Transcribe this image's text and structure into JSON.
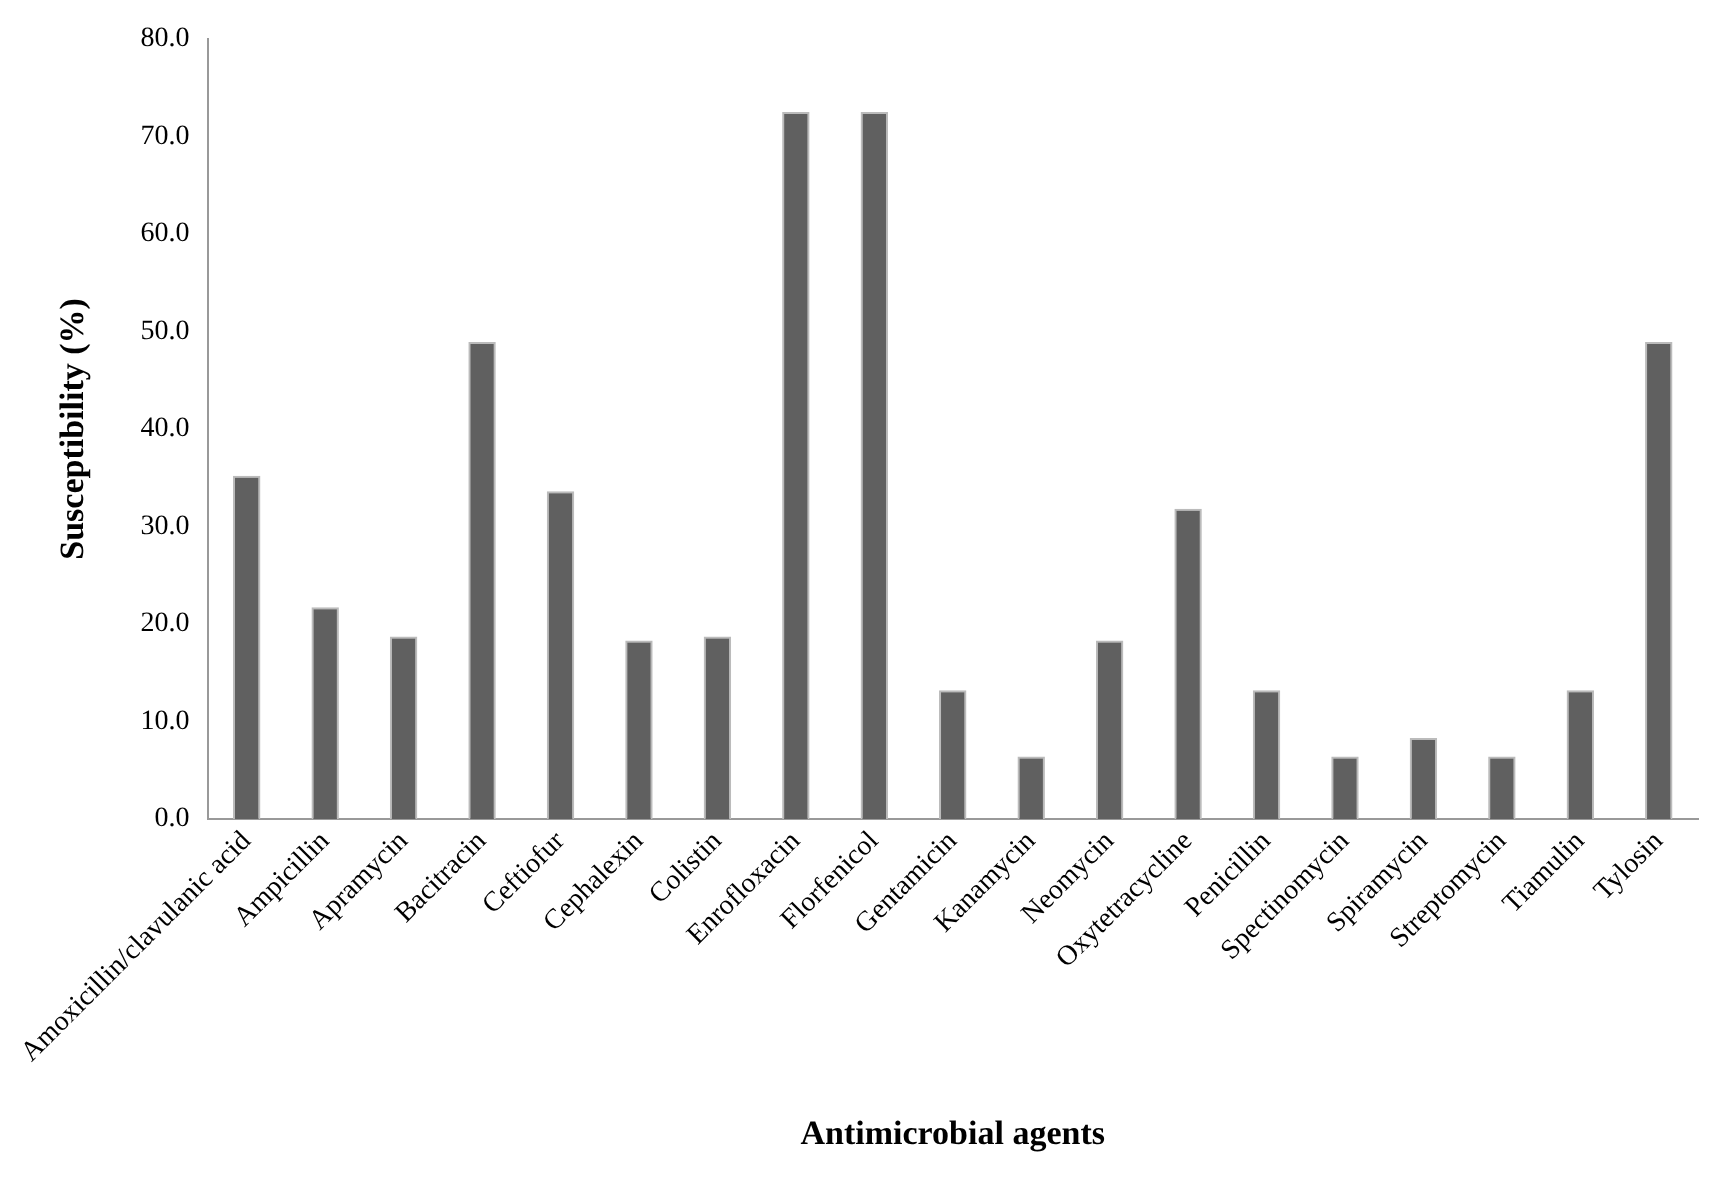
{
  "chart_data": {
    "type": "bar",
    "xlabel": "Antimicrobial agents",
    "ylabel": "Susceptibility (%)",
    "categories": [
      "Amoxicillin/clavulanic acid",
      "Ampicillin",
      "Apramycin",
      "Bacitracin",
      "Ceftiofur",
      "Cephalexin",
      "Colistin",
      "Enrofloxacin",
      "Florfenicol",
      "Gentamicin",
      "Kanamycin",
      "Neomycin",
      "Oxytetracycline",
      "Penicillin",
      "Spectinomycin",
      "Spiramycin",
      "Streptomycin",
      "Tiamulin",
      "Tylosin"
    ],
    "values": [
      35.2,
      21.7,
      18.7,
      48.9,
      33.6,
      18.3,
      18.7,
      72.5,
      72.5,
      13.2,
      6.4,
      18.3,
      31.8,
      13.2,
      6.4,
      8.3,
      6.4,
      13.2,
      48.9
    ],
    "color": "#606060",
    "ylim": [
      0,
      80
    ],
    "yticks": [
      {
        "value": 0,
        "label": "0.0"
      },
      {
        "value": 10,
        "label": "10.0"
      },
      {
        "value": 20,
        "label": "20.0"
      },
      {
        "value": 30,
        "label": "30.0"
      },
      {
        "value": 40,
        "label": "40.0"
      },
      {
        "value": 50,
        "label": "50.0"
      },
      {
        "value": 60,
        "label": "60.0"
      },
      {
        "value": 70,
        "label": "70.0"
      },
      {
        "value": 80,
        "label": "80.0"
      }
    ],
    "grid": false,
    "legend": false
  }
}
